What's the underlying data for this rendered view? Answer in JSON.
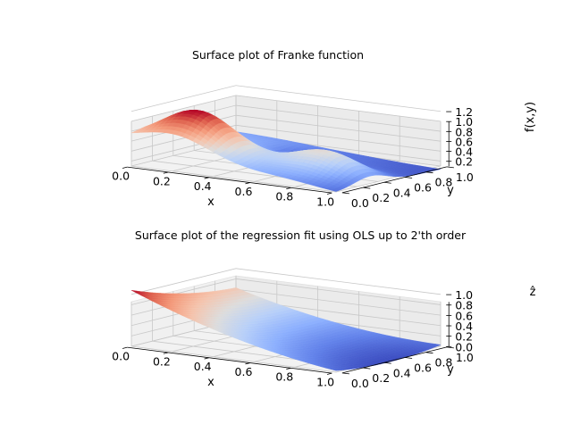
{
  "chart_data": [
    {
      "type": "surface3d",
      "title": "Surface plot of Franke function",
      "xlabel": "x",
      "ylabel": "y",
      "zlabel": "f(x,y)",
      "xlim": [
        0.0,
        1.0
      ],
      "ylim": [
        0.0,
        1.0
      ],
      "zlim": [
        0.1,
        1.25
      ],
      "xticks": [
        "0.0",
        "0.2",
        "0.4",
        "0.6",
        "0.8",
        "1.0"
      ],
      "yticks": [
        "0.0",
        "0.2",
        "0.4",
        "0.6",
        "0.8",
        "1.0"
      ],
      "zticks": [
        "0.2",
        "0.4",
        "0.6",
        "0.8",
        "1.0",
        "1.2"
      ],
      "function": "franke",
      "colormap": "coolwarm",
      "grid": true
    },
    {
      "type": "surface3d",
      "title": "Surface plot of the regression fit using OLS up to 2'th order",
      "xlabel": "x",
      "ylabel": "y",
      "zlabel": "ẑ",
      "xlim": [
        0.0,
        1.0
      ],
      "ylim": [
        0.0,
        1.0
      ],
      "zlim": [
        0.0,
        1.1
      ],
      "xticks": [
        "0.0",
        "0.2",
        "0.4",
        "0.6",
        "0.8",
        "1.0"
      ],
      "yticks": [
        "0.0",
        "0.2",
        "0.4",
        "0.6",
        "0.8",
        "1.0"
      ],
      "zticks": [
        "0.0",
        "0.2",
        "0.4",
        "0.6",
        "0.8",
        "1.0"
      ],
      "function": "ols_degree2_fit",
      "colormap": "coolwarm",
      "grid": true
    }
  ]
}
